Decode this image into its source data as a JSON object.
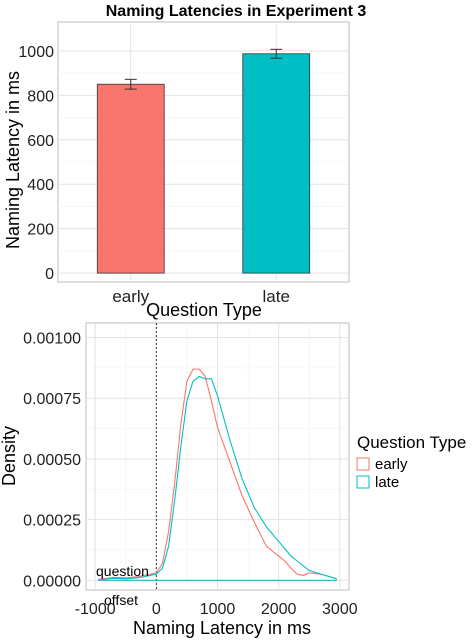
{
  "chart_data": [
    {
      "type": "bar",
      "title": "Naming Latencies in Experiment 3",
      "xlabel": "Question Type",
      "ylabel": "Naming Latency in ms",
      "categories": [
        "early",
        "late"
      ],
      "values": [
        850,
        987
      ],
      "error": [
        22,
        20
      ],
      "colors": [
        "#F8766D",
        "#00BFC4"
      ],
      "ylim": [
        -40,
        1130
      ],
      "yticks": [
        0,
        200,
        400,
        600,
        800,
        1000
      ],
      "ytick_labels": [
        "0",
        "200",
        "400",
        "600",
        "800",
        "1000"
      ],
      "grid": true
    },
    {
      "type": "line",
      "xlabel": "Naming Latency in ms",
      "ylabel": "Density",
      "xlim": [
        -1150,
        3150
      ],
      "ylim": [
        -4e-05,
        0.00106
      ],
      "xticks": [
        -1000,
        0,
        1000,
        2000,
        3000
      ],
      "xtick_labels": [
        "-1000",
        "0",
        "1000",
        "2000",
        "3000"
      ],
      "yticks": [
        0,
        0.00025,
        0.0005,
        0.00075,
        0.001
      ],
      "ytick_labels": [
        "0.00000",
        "0.00025",
        "0.00050",
        "0.00075",
        "0.00100"
      ],
      "grid": true,
      "vline": {
        "x": 0,
        "style": "dotted",
        "label_lines": [
          "question",
          "offset"
        ]
      },
      "legend": {
        "title": "Question Type",
        "position": "right"
      },
      "series": [
        {
          "name": "early",
          "color": "#F8766D",
          "x": [
            -950,
            -700,
            -500,
            -300,
            -100,
            0,
            100,
            200,
            300,
            400,
            500,
            600,
            700,
            800,
            900,
            1000,
            1100,
            1200,
            1400,
            1600,
            1800,
            2000,
            2100,
            2200,
            2300,
            2400,
            2500,
            2700,
            2900,
            2950
          ],
          "y": [
            3e-06,
            1.2e-05,
            1e-05,
            1.5e-05,
            2.5e-05,
            3e-05,
            7e-05,
            0.0002,
            0.0004,
            0.00064,
            0.00082,
            0.00087,
            0.00087,
            0.00084,
            0.00074,
            0.00063,
            0.00056,
            0.00049,
            0.00035,
            0.00024,
            0.00014,
            0.0001,
            8e-05,
            5e-05,
            2.5e-05,
            2e-05,
            3e-05,
            2.5e-05,
            1e-05,
            5e-06
          ]
        },
        {
          "name": "late",
          "color": "#00BFC4",
          "x": [
            -950,
            -700,
            -500,
            -300,
            -100,
            0,
            100,
            200,
            300,
            400,
            500,
            600,
            700,
            800,
            900,
            1000,
            1100,
            1200,
            1400,
            1600,
            1800,
            2000,
            2100,
            2200,
            2300,
            2400,
            2500,
            2700,
            2900,
            2950
          ],
          "y": [
            2e-06,
            8e-06,
            6e-06,
            1e-05,
            2e-05,
            2.5e-05,
            5e-05,
            0.00014,
            0.00033,
            0.00055,
            0.00074,
            0.00082,
            0.00084,
            0.00083,
            0.00083,
            0.00076,
            0.00067,
            0.00058,
            0.00042,
            0.0003,
            0.00022,
            0.00016,
            0.00013,
            0.0001,
            8e-05,
            6e-05,
            4e-05,
            2.5e-05,
            1e-05,
            5e-06
          ]
        }
      ]
    }
  ]
}
